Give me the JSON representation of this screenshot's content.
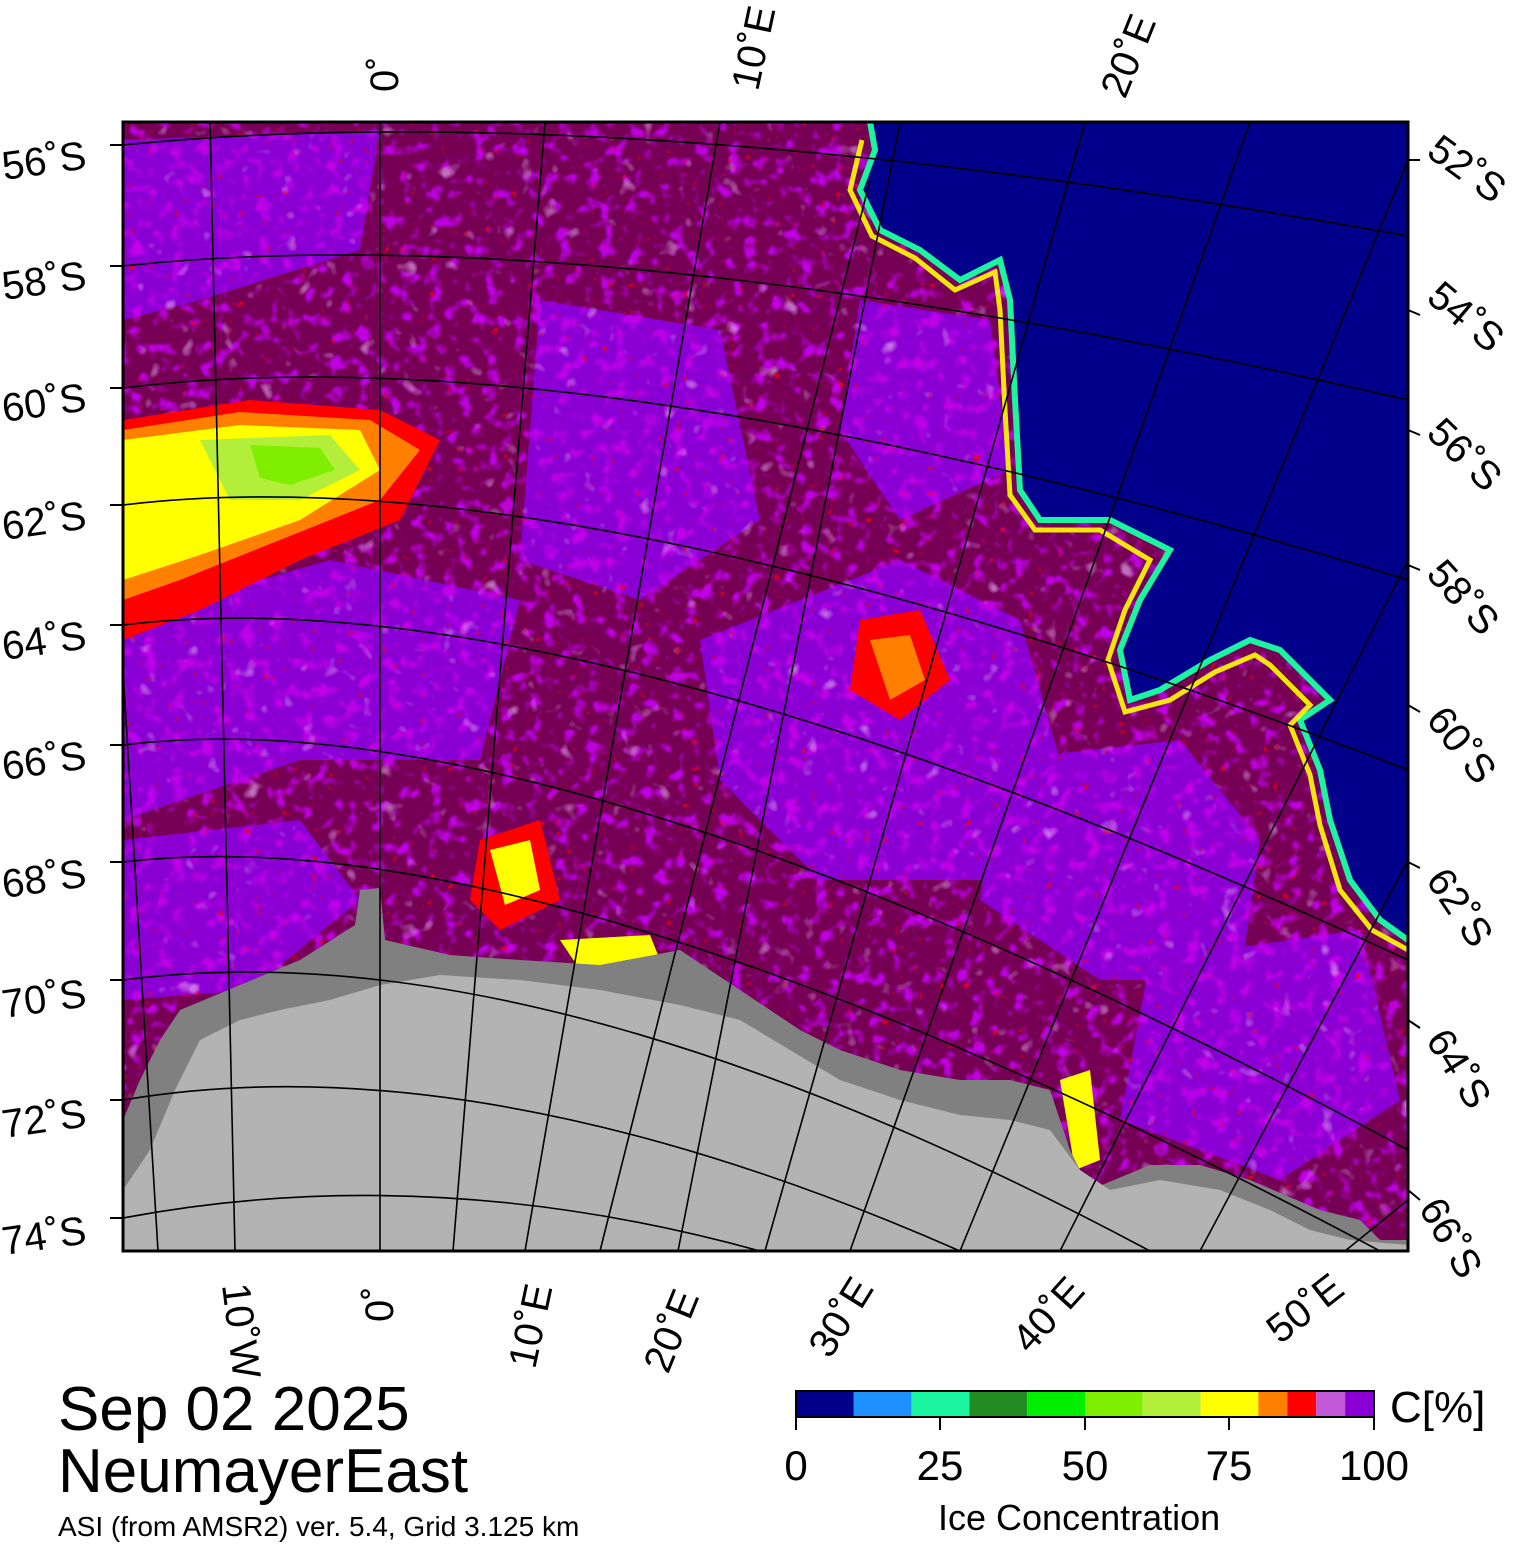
{
  "map": {
    "date": "Sep 02 2025",
    "region": "NeumayerEast",
    "source": "ASI (from AMSR2) ver. 5.4,  Grid 3.125 km",
    "colors": {
      "open_water": "#00008b",
      "land": "#b3b3b3",
      "ice_shelf": "#808080",
      "graticule": "#000000",
      "frame": "#000000"
    },
    "top_labels": [
      "0˚",
      "10˚E",
      "20˚E"
    ],
    "bottom_labels": [
      "10˚W",
      "0˚",
      "10˚E",
      "20˚E",
      "30˚E",
      "40˚E",
      "50˚E"
    ],
    "left_labels": [
      "56˚S",
      "58˚S",
      "60˚S",
      "62˚S",
      "64˚S",
      "66˚S",
      "68˚S",
      "70˚S",
      "72˚S",
      "74˚S"
    ],
    "right_labels": [
      "52˚S",
      "54˚S",
      "56˚S",
      "58˚S",
      "60˚S",
      "62˚S",
      "64˚S",
      "66˚S"
    ]
  },
  "colorbar": {
    "unit": "C[%]",
    "title": "Ice Concentration",
    "ticks": [
      "0",
      "25",
      "50",
      "75",
      "100"
    ],
    "bins": [
      {
        "from": 0,
        "to": 10,
        "color": "#00008b"
      },
      {
        "from": 10,
        "to": 20,
        "color": "#1e90ff"
      },
      {
        "from": 20,
        "to": 30,
        "color": "#1cf5a0"
      },
      {
        "from": 30,
        "to": 40,
        "color": "#228b22"
      },
      {
        "from": 40,
        "to": 50,
        "color": "#00ee00"
      },
      {
        "from": 50,
        "to": 60,
        "color": "#7fee00"
      },
      {
        "from": 60,
        "to": 70,
        "color": "#b3ee3a"
      },
      {
        "from": 70,
        "to": 80,
        "color": "#ffff00"
      },
      {
        "from": 80,
        "to": 85,
        "color": "#ff8000"
      },
      {
        "from": 85,
        "to": 90,
        "color": "#ff0000"
      },
      {
        "from": 90,
        "to": 95,
        "color": "#c058d8"
      },
      {
        "from": 95,
        "to": 100,
        "color": "#8a00d4"
      },
      {
        "from": 100,
        "to": 100,
        "color": "#750054"
      }
    ]
  }
}
